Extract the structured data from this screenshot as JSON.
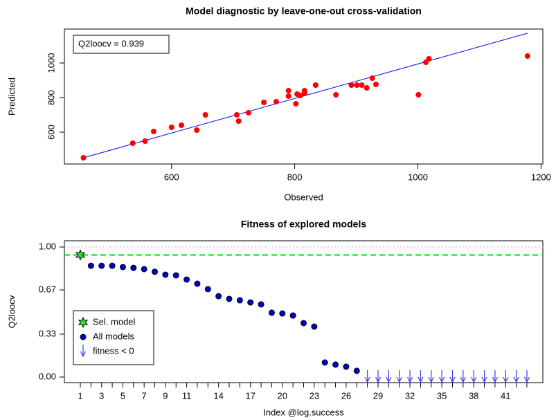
{
  "chart_data": [
    {
      "type": "scatter",
      "title": "Model diagnostic by leave-one-out cross-validation",
      "xlabel": "Observed",
      "ylabel": "Predicted",
      "annotation": "Q2loocv = 0.939",
      "xlim": [
        426,
        1203
      ],
      "ylim": [
        416,
        1196
      ],
      "xticks": [
        600,
        800,
        1000,
        1200
      ],
      "yticks": [
        600,
        800,
        1000
      ],
      "points": {
        "color": "#ff0000",
        "x": [
          457,
          537,
          557,
          571,
          600,
          616,
          641,
          655,
          706,
          709,
          725,
          750,
          770,
          790,
          790,
          802,
          804,
          809,
          816,
          816,
          834,
          867,
          892,
          901,
          909,
          917,
          926,
          932,
          1001,
          1013,
          1018,
          1178
        ],
        "values": [
          452,
          536,
          548,
          604,
          628,
          640,
          612,
          700,
          700,
          664,
          712,
          772,
          776,
          808,
          840,
          764,
          820,
          812,
          840,
          824,
          872,
          816,
          872,
          872,
          872,
          856,
          912,
          876,
          816,
          1004,
          1024,
          1040
        ]
      },
      "fit_line": {
        "color": "#0000ff",
        "x": [
          457,
          1178
        ],
        "values": [
          452,
          1172
        ]
      }
    },
    {
      "type": "scatter",
      "title": "Fitness of explored models",
      "xlabel": "Index @log.success",
      "ylabel": "Q2loocv",
      "xlim": [
        -0.5,
        44.5
      ],
      "ylim": [
        -0.043,
        1.048
      ],
      "xticks": [
        1,
        3,
        5,
        7,
        9,
        11,
        14,
        17,
        20,
        23,
        26,
        29,
        32,
        35,
        38,
        41
      ],
      "xminorticks": [
        1,
        2,
        3,
        4,
        5,
        6,
        7,
        8,
        9,
        10,
        11,
        12,
        13,
        14,
        15,
        16,
        17,
        18,
        19,
        20,
        21,
        22,
        23,
        24,
        25,
        26,
        27,
        28,
        29,
        30,
        31,
        32,
        33,
        34,
        35,
        36,
        37,
        38,
        39,
        40,
        41,
        42,
        43
      ],
      "yticks": [
        {
          "value": 0,
          "label": "0.00"
        },
        {
          "value": 0.33,
          "label": "0.33"
        },
        {
          "value": 0.67,
          "label": "0.67"
        },
        {
          "value": 1,
          "label": "1.00"
        }
      ],
      "hlines": [
        {
          "value": 1,
          "color": "#b0b0b0",
          "style": "dotted"
        },
        {
          "value": 0.939,
          "color": "#00dd00",
          "style": "dashed"
        }
      ],
      "legend": "left",
      "series": [
        {
          "name": "Sel. model",
          "marker": "star",
          "color": "#33dd33",
          "x": [
            1
          ],
          "values": [
            0.939
          ]
        },
        {
          "name": "All models",
          "marker": "circle",
          "color": "#0000cc",
          "x": [
            2,
            3,
            4,
            5,
            6,
            7,
            8,
            9,
            10,
            11,
            12,
            13,
            14,
            15,
            16,
            17,
            18,
            19,
            20,
            21,
            22,
            23,
            24,
            25,
            26,
            27
          ],
          "values": [
            0.856,
            0.856,
            0.856,
            0.846,
            0.84,
            0.83,
            0.81,
            0.787,
            0.782,
            0.75,
            0.718,
            0.676,
            0.622,
            0.601,
            0.59,
            0.574,
            0.559,
            0.495,
            0.489,
            0.473,
            0.415,
            0.388,
            0.112,
            0.096,
            0.08,
            0.048
          ]
        },
        {
          "name": "fitness < 0",
          "marker": "arrow",
          "color": "#4444ff",
          "x": [
            28,
            29,
            30,
            31,
            32,
            33,
            34,
            35,
            36,
            37,
            38,
            39,
            40,
            41,
            42,
            43
          ]
        }
      ]
    }
  ]
}
